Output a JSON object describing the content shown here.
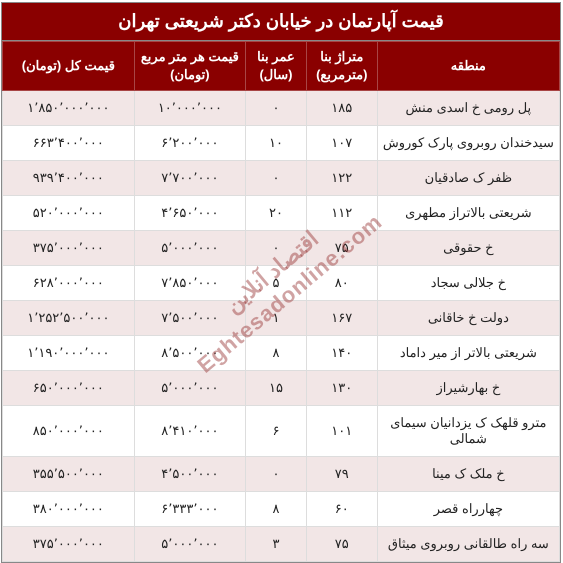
{
  "title": "قیمت آپارتمان در خیابان دکتر شریعتی تهران",
  "watermark_fa": "اقتصاد آنلاین",
  "watermark_en": "Eghtesadonline.com",
  "headers": {
    "region": "منطقه",
    "area": "متراژ بنا (مترمربع)",
    "age": "عمر بنا (سال)",
    "ppm": "قیمت هر متر مربع (تومان)",
    "total": "قیمت کل (تومان)"
  },
  "rows": [
    {
      "region": "پل رومی خ اسدی منش",
      "area": "۱۸۵",
      "age": "۰",
      "ppm": "۱۰٬۰۰۰٬۰۰۰",
      "total": "۱٬۸۵۰٬۰۰۰٬۰۰۰"
    },
    {
      "region": "سیدخندان روبروی پارک کوروش",
      "area": "۱۰۷",
      "age": "۱۰",
      "ppm": "۶٬۲۰۰٬۰۰۰",
      "total": "۶۶۳٬۴۰۰٬۰۰۰"
    },
    {
      "region": "ظفر ک صادقیان",
      "area": "۱۲۲",
      "age": "۰",
      "ppm": "۷٬۷۰۰٬۰۰۰",
      "total": "۹۳۹٬۴۰۰٬۰۰۰"
    },
    {
      "region": "شریعتی بالاتراز مطهری",
      "area": "۱۱۲",
      "age": "۲۰",
      "ppm": "۴٬۶۵۰٬۰۰۰",
      "total": "۵۲۰٬۰۰۰٬۰۰۰"
    },
    {
      "region": "خ حقوقی",
      "area": "۷۵",
      "age": "۰",
      "ppm": "۵٬۰۰۰٬۰۰۰",
      "total": "۳۷۵٬۰۰۰٬۰۰۰"
    },
    {
      "region": "خ جلالی سجاد",
      "area": "۸۰",
      "age": "۵",
      "ppm": "۷٬۸۵۰٬۰۰۰",
      "total": "۶۲۸٬۰۰۰٬۰۰۰"
    },
    {
      "region": "دولت خ خاقانی",
      "area": "۱۶۷",
      "age": "۱",
      "ppm": "۷٬۵۰۰٬۰۰۰",
      "total": "۱٬۲۵۲٬۵۰۰٬۰۰۰"
    },
    {
      "region": "شریعتی بالاتر از میر داماد",
      "area": "۱۴۰",
      "age": "۸",
      "ppm": "۸٬۵۰۰٬۰۰۰",
      "total": "۱٬۱۹۰٬۰۰۰٬۰۰۰"
    },
    {
      "region": "خ بهارشیراز",
      "area": "۱۳۰",
      "age": "۱۵",
      "ppm": "۵٬۰۰۰٬۰۰۰",
      "total": "۶۵۰٬۰۰۰٬۰۰۰"
    },
    {
      "region": "مترو قلهک ک یزدانیان سیمای شمالی",
      "area": "۱۰۱",
      "age": "۶",
      "ppm": "۸٬۴۱۰٬۰۰۰",
      "total": "۸۵۰٬۰۰۰٬۰۰۰"
    },
    {
      "region": "خ ملک ک مینا",
      "area": "۷۹",
      "age": "۰",
      "ppm": "۴٬۵۰۰٬۰۰۰",
      "total": "۳۵۵٬۵۰۰٬۰۰۰"
    },
    {
      "region": "چهارراه قصر",
      "area": "۶۰",
      "age": "۸",
      "ppm": "۶٬۳۳۳٬۰۰۰",
      "total": "۳۸۰٬۰۰۰٬۰۰۰"
    },
    {
      "region": "سه راه طالقانی روبروی میثاق",
      "area": "۷۵",
      "age": "۳",
      "ppm": "۵٬۰۰۰٬۰۰۰",
      "total": "۳۷۵٬۰۰۰٬۰۰۰"
    }
  ],
  "colors": {
    "header_bg": "#8a0000",
    "header_fg": "#ffffff",
    "row_odd_bg": "#f2e6e6",
    "row_even_bg": "#ffffff",
    "border": "#dddddd",
    "watermark": "rgba(150,50,50,0.45)"
  }
}
